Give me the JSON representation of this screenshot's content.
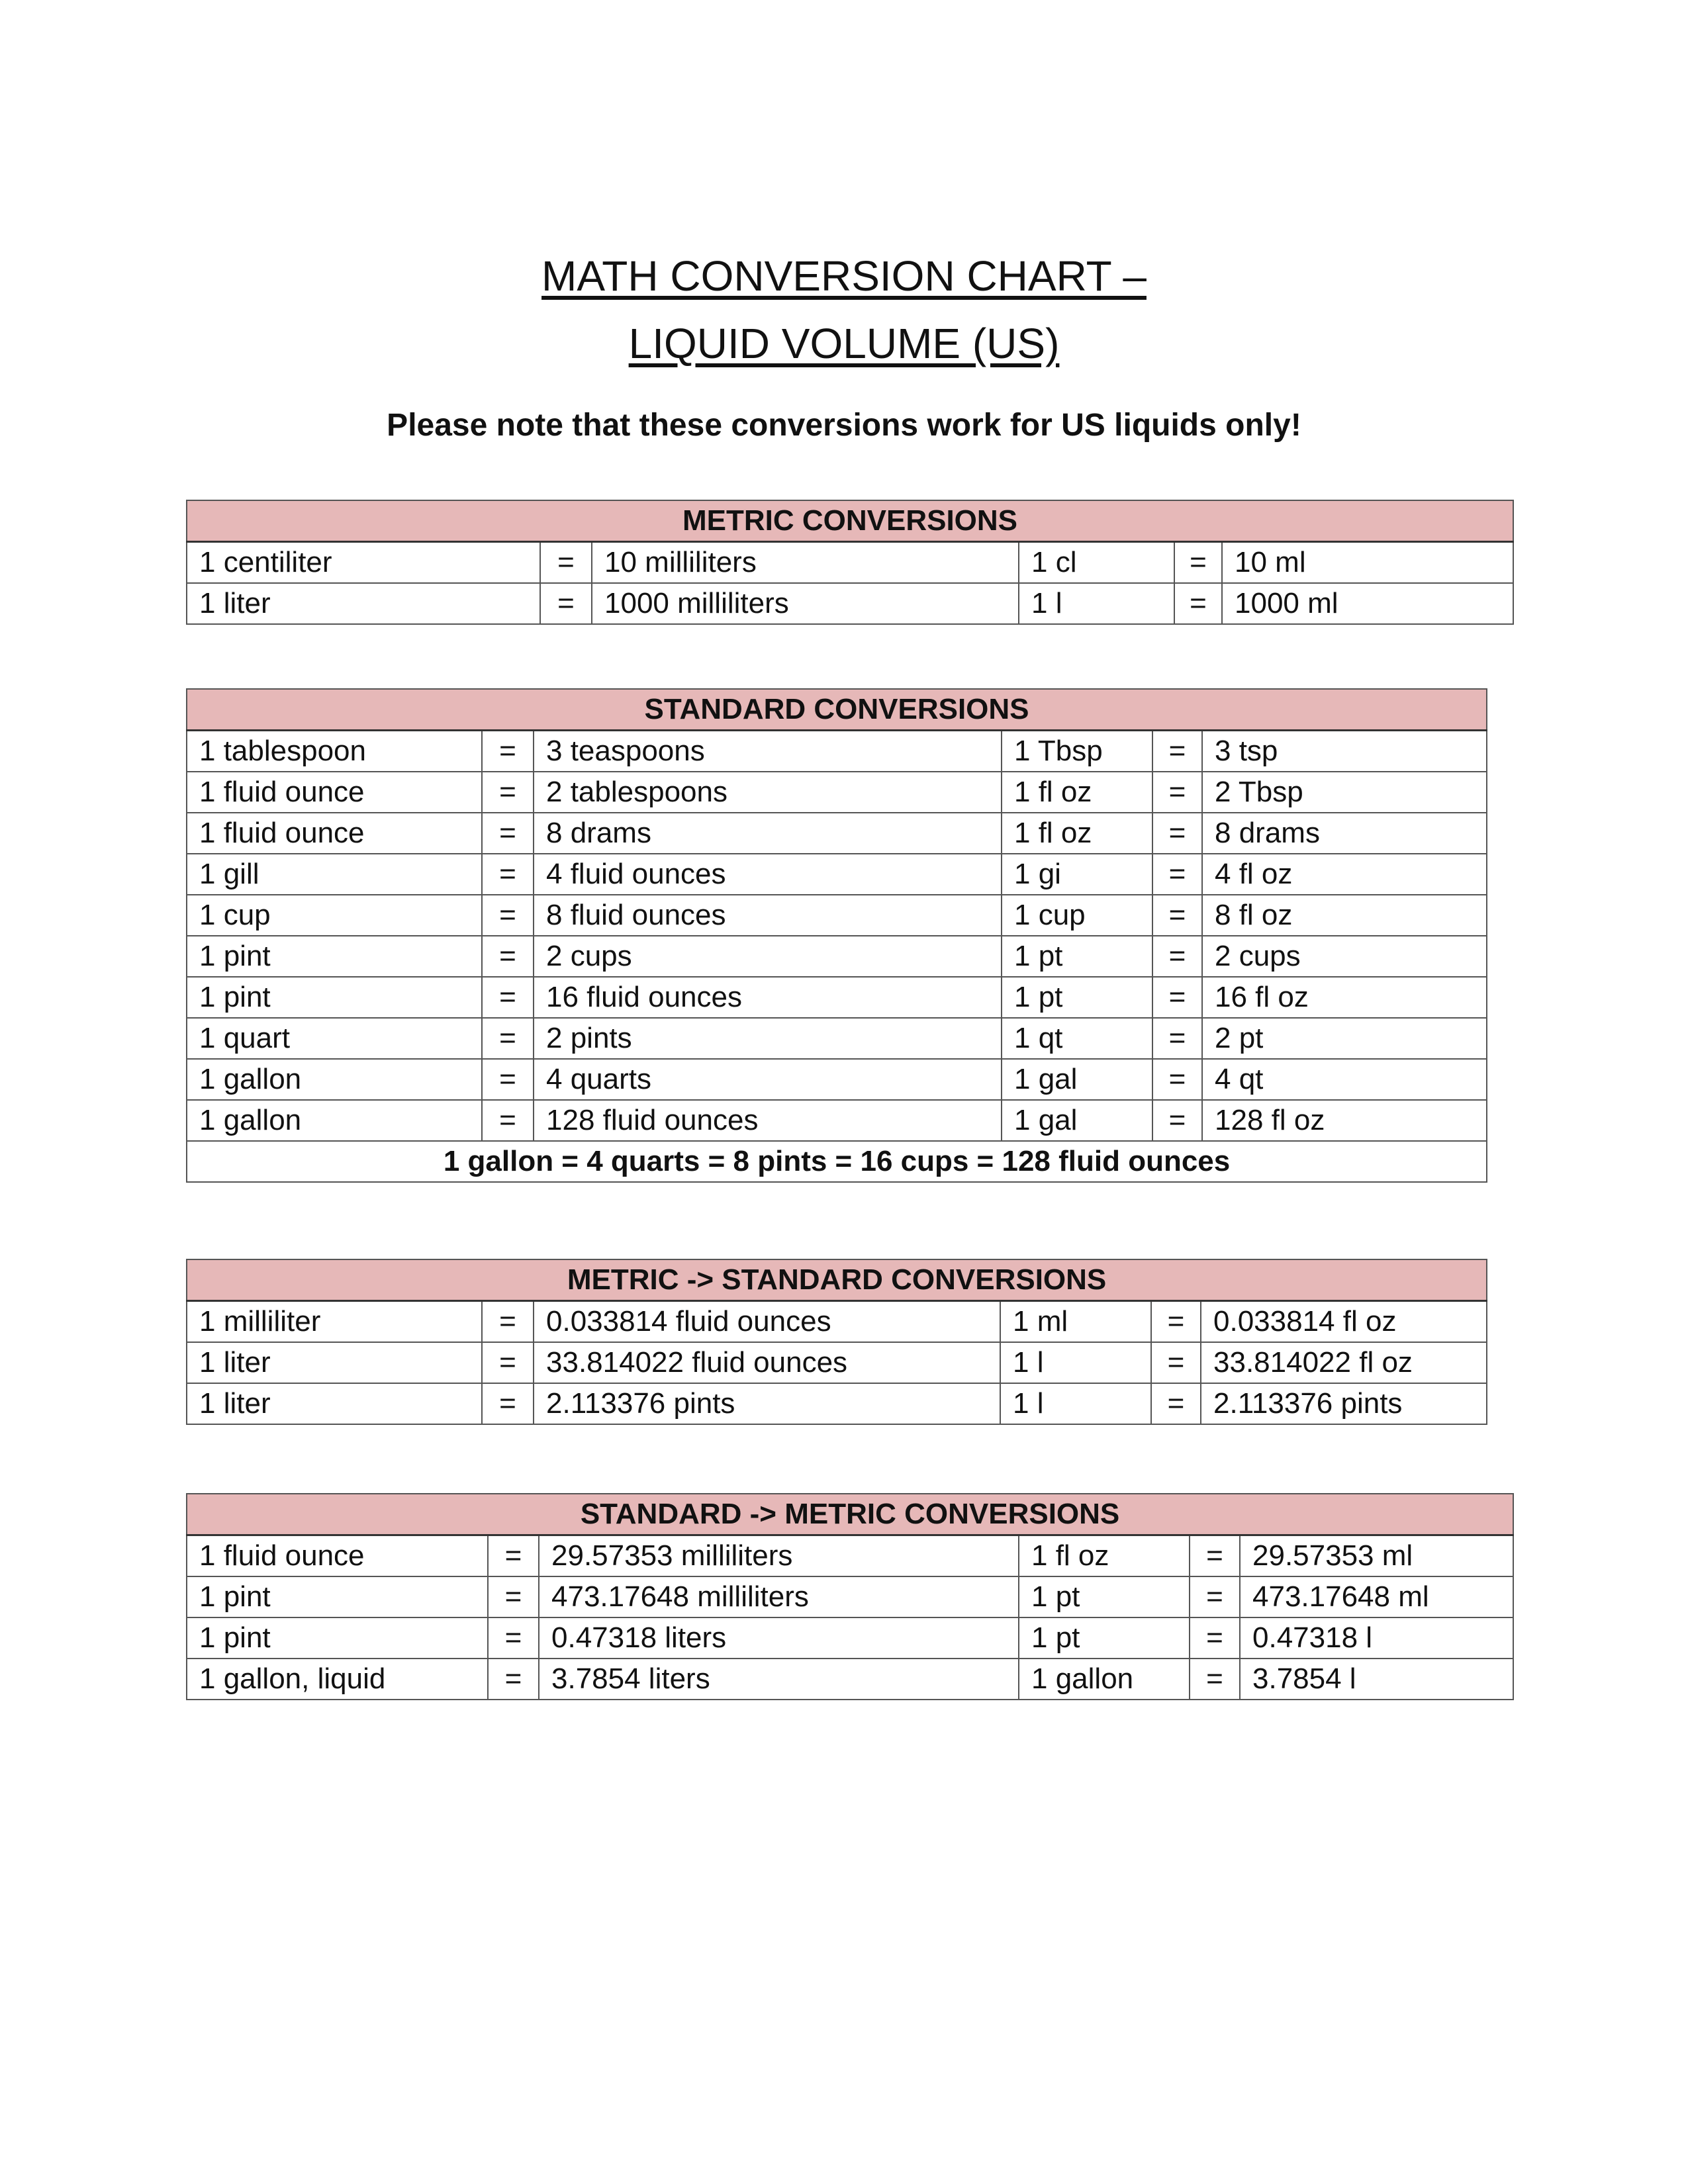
{
  "title_line1": "MATH CONVERSION CHART –",
  "title_line2": "LIQUID VOLUME (US)",
  "note": "Please note that these conversions work for US liquids only!",
  "colors": {
    "header_bg": "#e6b8b8",
    "border": "#555555"
  },
  "tables": [
    {
      "header": "METRIC CONVERSIONS",
      "rows": [
        [
          "1 centiliter",
          "=",
          "10 milliliters",
          "1 cl",
          "=",
          "10 ml"
        ],
        [
          "1 liter",
          "=",
          "1000 milliliters",
          "1 l",
          "=",
          "1000 ml"
        ]
      ]
    },
    {
      "header": "STANDARD CONVERSIONS",
      "rows": [
        [
          "1 tablespoon",
          "=",
          "3 teaspoons",
          "1 Tbsp",
          "=",
          "3 tsp"
        ],
        [
          "1 fluid ounce",
          "=",
          "2 tablespoons",
          "1 fl oz",
          "=",
          "2 Tbsp"
        ],
        [
          "1 fluid ounce",
          "=",
          "8 drams",
          "1 fl oz",
          "=",
          "8 drams"
        ],
        [
          "1 gill",
          "=",
          "4 fluid ounces",
          "1 gi",
          "=",
          "4 fl oz"
        ],
        [
          "1 cup",
          "=",
          "8 fluid ounces",
          "1 cup",
          "=",
          "8 fl oz"
        ],
        [
          "1 pint",
          "=",
          "2 cups",
          "1 pt",
          "=",
          "2 cups"
        ],
        [
          "1 pint",
          "=",
          "16 fluid ounces",
          "1 pt",
          "=",
          "16 fl oz"
        ],
        [
          "1 quart",
          "=",
          "2 pints",
          "1 qt",
          "=",
          "2 pt"
        ],
        [
          "1 gallon",
          "=",
          "4 quarts",
          "1 gal",
          "=",
          "4 qt"
        ],
        [
          "1 gallon",
          "=",
          "128 fluid ounces",
          "1 gal",
          "=",
          "128 fl oz"
        ]
      ],
      "footer": "1 gallon = 4 quarts = 8 pints = 16 cups = 128 fluid ounces"
    },
    {
      "header": "METRIC -> STANDARD CONVERSIONS",
      "rows": [
        [
          "1 milliliter",
          "=",
          "0.033814 fluid ounces",
          "1 ml",
          "=",
          "0.033814 fl oz"
        ],
        [
          "1 liter",
          "=",
          "33.814022 fluid ounces",
          "1 l",
          "=",
          "33.814022 fl oz"
        ],
        [
          "1 liter",
          "=",
          "2.113376 pints",
          "1 l",
          "=",
          "2.113376 pints"
        ]
      ]
    },
    {
      "header": "STANDARD -> METRIC CONVERSIONS",
      "rows": [
        [
          "1 fluid ounce",
          "=",
          "29.57353 milliliters",
          "1 fl oz",
          "=",
          "29.57353 ml"
        ],
        [
          "1 pint",
          "=",
          "473.17648 milliliters",
          "1 pt",
          "=",
          "473.17648 ml"
        ],
        [
          "1 pint",
          "=",
          "0.47318 liters",
          "1 pt",
          "=",
          "0.47318 l"
        ],
        [
          "1 gallon, liquid",
          "=",
          "3.7854 liters",
          "1 gallon",
          "=",
          "3.7854 l"
        ]
      ]
    }
  ]
}
